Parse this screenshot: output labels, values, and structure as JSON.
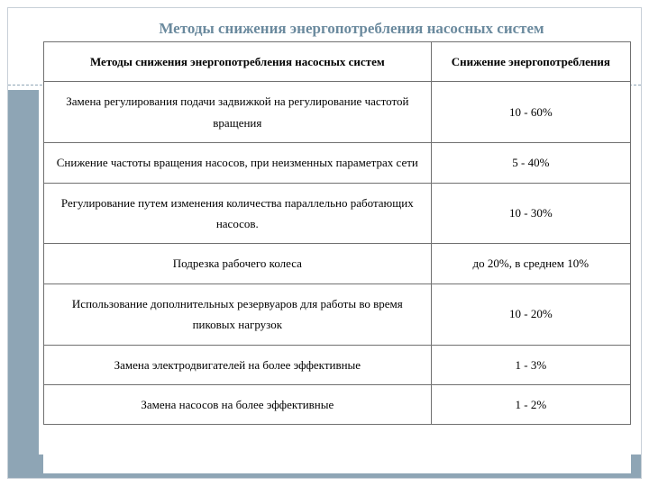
{
  "title": "Методы снижения энергопотребления насосных систем",
  "table": {
    "type": "table",
    "columns": [
      "Методы снижения энергопотребления насосных систем",
      "Снижение энергопотребления"
    ],
    "column_widths": [
      "66%",
      "34%"
    ],
    "rows": [
      [
        "Замена регулирования подачи задвижкой на регулирование частотой вращения",
        "10 - 60%"
      ],
      [
        "Снижение частоты вращения насосов, при неизменных параметрах сети",
        "5 - 40%"
      ],
      [
        "Регулирование путем изменения количества параллельно работающих насосов.",
        "10 - 30%"
      ],
      [
        "Подрезка рабочего колеса",
        "до 20%, в среднем 10%"
      ],
      [
        "Использование дополнительных резервуаров для работы во время пиковых нагрузок",
        "10 - 20%"
      ],
      [
        "Замена электродвигателей на более эффективные",
        "1 - 3%"
      ],
      [
        "Замена насосов на более эффективные",
        "1 - 2%"
      ]
    ],
    "header_fontsize": 14,
    "cell_fontsize": 13,
    "border_color": "#707070",
    "background_color": "#ffffff",
    "text_color": "#000000"
  },
  "decor": {
    "frame_border_color": "#c8d0d8",
    "rule_color": "#8ea5b5",
    "sidebar_color": "#8ea5b5",
    "bottombar_color": "#8ea5b5",
    "title_color": "#6b8a9e"
  }
}
